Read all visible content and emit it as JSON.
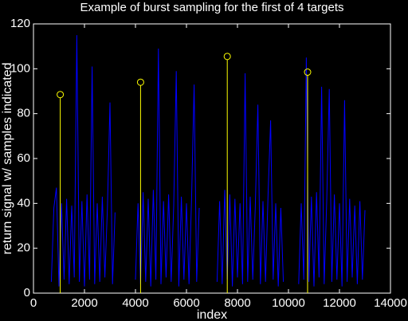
{
  "chart_data": {
    "type": "line",
    "title": "Example of burst sampling for the first of 4 targets",
    "xlabel": "index",
    "ylabel": "return signal w/ samples indicated",
    "xlim": [
      0,
      14000
    ],
    "xticks": [
      0,
      2000,
      4000,
      6000,
      8000,
      10000,
      12000,
      14000
    ],
    "ylim": [
      0,
      120
    ],
    "yticks": [
      0,
      20,
      40,
      60,
      80,
      100,
      120
    ],
    "series": [
      {
        "color": "#0000ff",
        "x": [
          700,
          800,
          900,
          1000,
          1100,
          1200,
          1300,
          1400,
          1500,
          1600,
          1700,
          1800,
          1900,
          2000,
          2100,
          2200,
          2300,
          2400,
          2500,
          2600,
          2700,
          2800,
          2900,
          3000,
          3100,
          3200,
          3600,
          4000,
          4100,
          4200,
          4300,
          4400,
          4500,
          4600,
          4700,
          4800,
          4900,
          5000,
          5100,
          5200,
          5300,
          5400,
          5500,
          5600,
          5700,
          5800,
          5900,
          6000,
          6100,
          6200,
          6300,
          6400,
          6500,
          6900,
          7200,
          7300,
          7400,
          7500,
          7600,
          7700,
          7800,
          7900,
          8000,
          8100,
          8200,
          8300,
          8400,
          8500,
          8600,
          8700,
          8800,
          8900,
          9000,
          9100,
          9200,
          9300,
          9400,
          9500,
          9600,
          9700,
          9800,
          10100,
          10400,
          10500,
          10600,
          10700,
          10800,
          10900,
          11000,
          11100,
          11200,
          11300,
          11400,
          11500,
          11600,
          11700,
          11800,
          11900,
          12000,
          12100,
          12200,
          12300,
          12400,
          12500,
          12600,
          12700,
          12800,
          12900,
          13000
        ],
        "values": [
          5,
          38,
          47,
          3,
          40,
          6,
          42,
          4,
          39,
          7,
          115,
          5,
          41,
          3,
          44,
          6,
          101,
          4,
          40,
          5,
          43,
          7,
          38,
          85,
          4,
          36,
          null,
          6,
          40,
          4,
          45,
          5,
          42,
          3,
          46,
          6,
          109,
          4,
          41,
          7,
          44,
          5,
          39,
          99,
          3,
          43,
          6,
          40,
          4,
          42,
          93,
          5,
          38,
          null,
          5,
          41,
          4,
          46,
          6,
          44,
          3,
          42,
          7,
          40,
          4,
          98,
          5,
          43,
          6,
          39,
          84,
          4,
          41,
          5,
          44,
          77,
          6,
          40,
          3,
          38,
          5,
          null,
          4,
          40,
          6,
          105,
          5,
          43,
          3,
          45,
          7,
          92,
          4,
          41,
          91,
          5,
          44,
          6,
          40,
          3,
          86,
          5,
          42,
          7,
          39,
          4,
          41,
          6,
          37
        ]
      }
    ],
    "stems": {
      "color": "#ffff00",
      "x": [
        1050,
        4200,
        7600,
        10750
      ],
      "values": [
        88.5,
        94,
        105.5,
        98.5
      ]
    }
  }
}
